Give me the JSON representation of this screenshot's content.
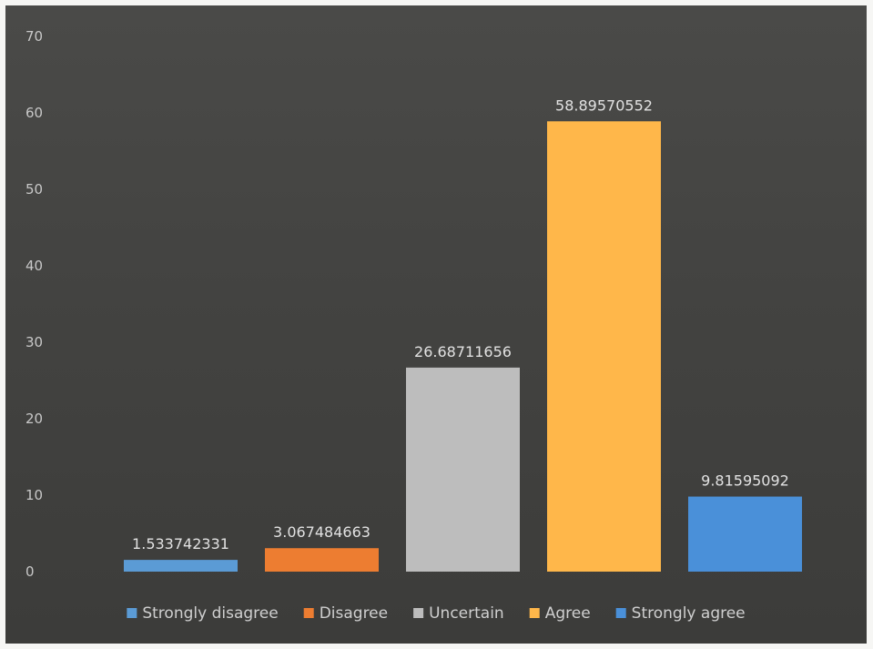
{
  "chart_data": {
    "type": "bar",
    "title": "",
    "xlabel": "",
    "ylabel": "",
    "ylim": [
      0,
      70
    ],
    "yticks": [
      0,
      10,
      20,
      30,
      40,
      50,
      60,
      70
    ],
    "grid": false,
    "legend_position": "bottom",
    "series": [
      {
        "name": "Strongly disagree",
        "value": 1.533742331,
        "label": "1.533742331",
        "color": "#5b9bd5"
      },
      {
        "name": "Disagree",
        "value": 3.067484663,
        "label": "3.067484663",
        "color": "#ed7d31"
      },
      {
        "name": "Uncertain",
        "value": 26.68711656,
        "label": "26.68711656",
        "color": "#bdbdbd"
      },
      {
        "name": "Agree",
        "value": 58.89570552,
        "label": "58.89570552",
        "color": "#ffb74a"
      },
      {
        "name": "Strongly agree",
        "value": 9.81595092,
        "label": "9.81595092",
        "color": "#4a90d9"
      }
    ]
  }
}
